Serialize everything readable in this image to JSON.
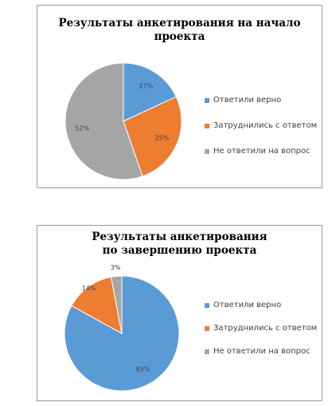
{
  "colors": {
    "blue": "#5b9bd5",
    "orange": "#ed7d31",
    "gray": "#a5a5a5"
  },
  "chart_data": [
    {
      "type": "pie",
      "title": "Результаты анкетирования на начало проекта",
      "categories": [
        "Ответили верно",
        "Затруднились с ответом",
        "Не ответили на вопрос"
      ],
      "values": [
        17,
        25,
        52
      ],
      "labels": [
        "17%",
        "25%",
        "52%"
      ],
      "legend": "right"
    },
    {
      "type": "pie",
      "title": "Результаты анкетирования по завершению проекта",
      "categories": [
        "Ответили верно",
        "Затруднились с ответом",
        "Не ответили на вопрос"
      ],
      "values": [
        83,
        14,
        3
      ],
      "labels": [
        "83%",
        "14%",
        "3%"
      ],
      "legend": "right"
    }
  ]
}
